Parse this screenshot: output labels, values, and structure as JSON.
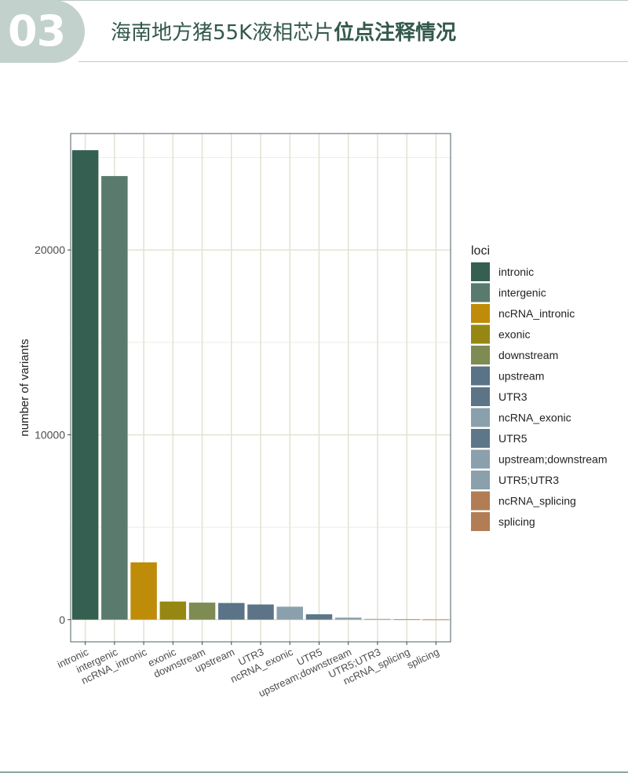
{
  "header": {
    "section_number": "03",
    "title_normal": "海南地方猪55K液相芯片",
    "title_bold": "位点注释情况"
  },
  "colors": {
    "accent_dark": "#33584c",
    "badge": "#c2d1cb"
  },
  "chart_data": {
    "type": "bar",
    "categories": [
      "intronic",
      "intergenic",
      "ncRNA_intronic",
      "exonic",
      "downstream",
      "upstream",
      "UTR3",
      "ncRNA_exonic",
      "UTR5",
      "upstream;downstream",
      "UTR5;UTR3",
      "ncRNA_splicing",
      "splicing"
    ],
    "values": [
      25400,
      24000,
      3100,
      980,
      920,
      900,
      820,
      700,
      290,
      110,
      40,
      20,
      10
    ],
    "colors": [
      "#355f51",
      "#5a7a6e",
      "#bf8c0a",
      "#968713",
      "#7e8b53",
      "#5a7386",
      "#5d7486",
      "#8aa0ac",
      "#5d7789",
      "#8aa0ac",
      "#8aa0ac",
      "#b27d55",
      "#b27d55"
    ],
    "xlabel": "",
    "ylabel": "number of variants",
    "ylim": [
      -1200,
      26300
    ],
    "yticks": [
      0,
      10000,
      20000
    ],
    "grid": true,
    "legend": {
      "title": "loci",
      "position": "right",
      "entries": [
        "intronic",
        "intergenic",
        "ncRNA_intronic",
        "exonic",
        "downstream",
        "upstream",
        "UTR3",
        "ncRNA_exonic",
        "UTR5",
        "upstream;downstream",
        "UTR5;UTR3",
        "ncRNA_splicing",
        "splicing"
      ]
    }
  }
}
